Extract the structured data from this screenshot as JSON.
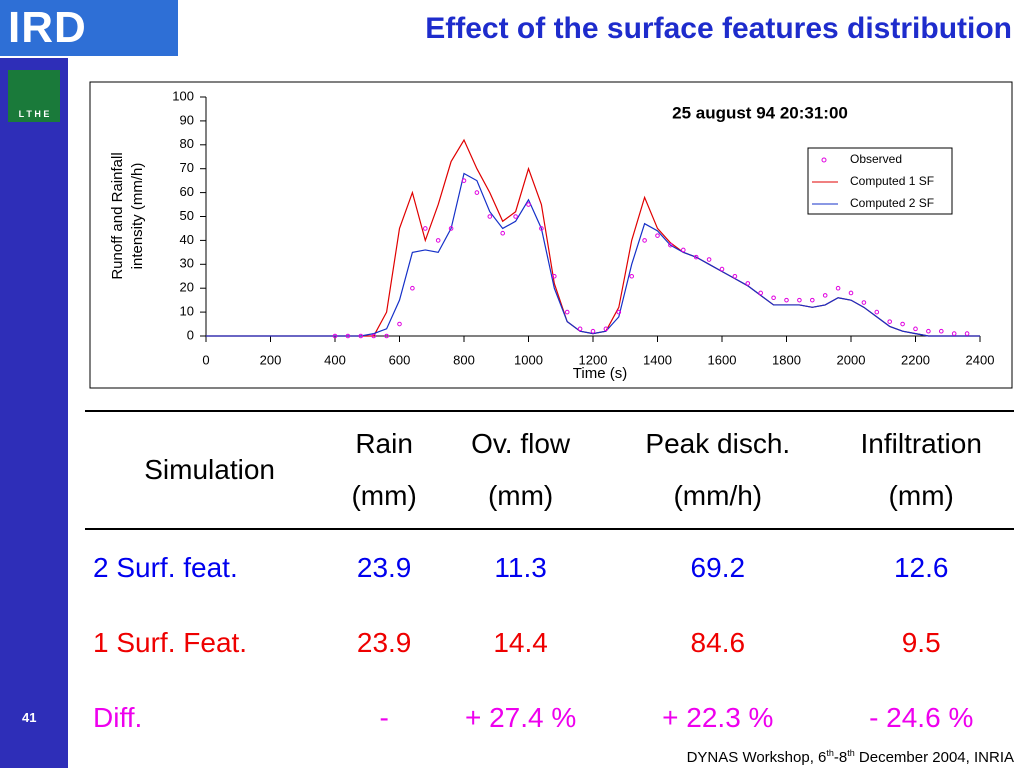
{
  "header": {
    "logo": "IRD",
    "logo2": "L T H E",
    "title": "Effect of the surface features distribution"
  },
  "chart_data": {
    "type": "line",
    "annotation": "25 august 94 20:31:00",
    "ylabel": [
      "Runoff and Rainfall",
      "intensity (mm/h)"
    ],
    "xlabel": "Time  (s)",
    "x": [
      0,
      40,
      80,
      120,
      160,
      200,
      240,
      280,
      320,
      360,
      400,
      440,
      480,
      520,
      560,
      600,
      640,
      680,
      720,
      760,
      800,
      840,
      880,
      920,
      960,
      1000,
      1040,
      1080,
      1120,
      1160,
      1200,
      1240,
      1280,
      1320,
      1360,
      1400,
      1440,
      1480,
      1520,
      1560,
      1600,
      1640,
      1680,
      1720,
      1760,
      1800,
      1840,
      1880,
      1920,
      1960,
      2000,
      2040,
      2080,
      2120,
      2160,
      2200,
      2240,
      2280,
      2320,
      2360,
      2400
    ],
    "series": [
      {
        "name": "Observed",
        "color": "#e000e0",
        "style": "markers",
        "values": [
          null,
          null,
          null,
          null,
          null,
          null,
          null,
          null,
          null,
          null,
          0,
          0,
          0,
          0,
          0,
          5,
          20,
          45,
          40,
          45,
          65,
          60,
          50,
          43,
          50,
          55,
          45,
          25,
          10,
          3,
          2,
          3,
          10,
          25,
          40,
          42,
          38,
          36,
          33,
          32,
          28,
          25,
          22,
          18,
          16,
          15,
          15,
          15,
          17,
          20,
          18,
          14,
          10,
          6,
          5,
          3,
          2,
          2,
          1,
          1,
          null
        ]
      },
      {
        "name": "Computed 1 SF",
        "color": "#e00000",
        "style": "line",
        "values": [
          0,
          0,
          0,
          0,
          0,
          0,
          0,
          0,
          0,
          0,
          0,
          0,
          0,
          0,
          10,
          45,
          60,
          40,
          55,
          73,
          82,
          70,
          60,
          48,
          52,
          70,
          55,
          22,
          6,
          2,
          1,
          2,
          12,
          40,
          58,
          45,
          39,
          35,
          33,
          30,
          27,
          24,
          21,
          17,
          13,
          13,
          13,
          12,
          13,
          16,
          15,
          12,
          8,
          4,
          2,
          1,
          0,
          0,
          0,
          0,
          0
        ]
      },
      {
        "name": "Computed 2 SF",
        "color": "#1530c8",
        "style": "line",
        "values": [
          0,
          0,
          0,
          0,
          0,
          0,
          0,
          0,
          0,
          0,
          0,
          0,
          0,
          1,
          3,
          15,
          35,
          36,
          35,
          45,
          68,
          65,
          52,
          45,
          48,
          57,
          45,
          20,
          6,
          2,
          1,
          2,
          8,
          30,
          47,
          44,
          38,
          35,
          33,
          30,
          27,
          24,
          21,
          17,
          13,
          13,
          13,
          12,
          13,
          16,
          15,
          12,
          8,
          4,
          2,
          1,
          0,
          0,
          0,
          0,
          0
        ]
      }
    ],
    "xlim": [
      0,
      2400
    ],
    "xticks": [
      0,
      200,
      400,
      600,
      800,
      1000,
      1200,
      1400,
      1600,
      1800,
      2000,
      2200,
      2400
    ],
    "ylim": [
      0,
      100
    ],
    "yticks": [
      0,
      10,
      20,
      30,
      40,
      50,
      60,
      70,
      80,
      90,
      100
    ],
    "legend": "upper right"
  },
  "table": {
    "header": [
      [
        "Simulation"
      ],
      [
        "Rain",
        "(mm)"
      ],
      [
        "Ov. flow",
        "(mm)"
      ],
      [
        "Peak disch.",
        "(mm/h)"
      ],
      [
        "Infiltration",
        "(mm)"
      ]
    ],
    "rows": [
      {
        "color": "#0000ee",
        "cells": [
          "2 Surf. feat.",
          "23.9",
          "11.3",
          "69.2",
          "12.6"
        ]
      },
      {
        "color": "#ee0000",
        "cells": [
          "1 Surf. Feat.",
          "23.9",
          "14.4",
          "84.6",
          "9.5"
        ]
      },
      {
        "color": "#ee00ee",
        "cells": [
          "Diff.",
          "-",
          "+ 27.4 %",
          "+ 22.3 %",
          "- 24.6 %"
        ]
      }
    ]
  },
  "footer": {
    "page": "41",
    "text1": "DYNAS Workshop, 6",
    "sup1": "th",
    "text2": "-8",
    "sup2": "th",
    "text3": " December 2004, INRIA"
  }
}
